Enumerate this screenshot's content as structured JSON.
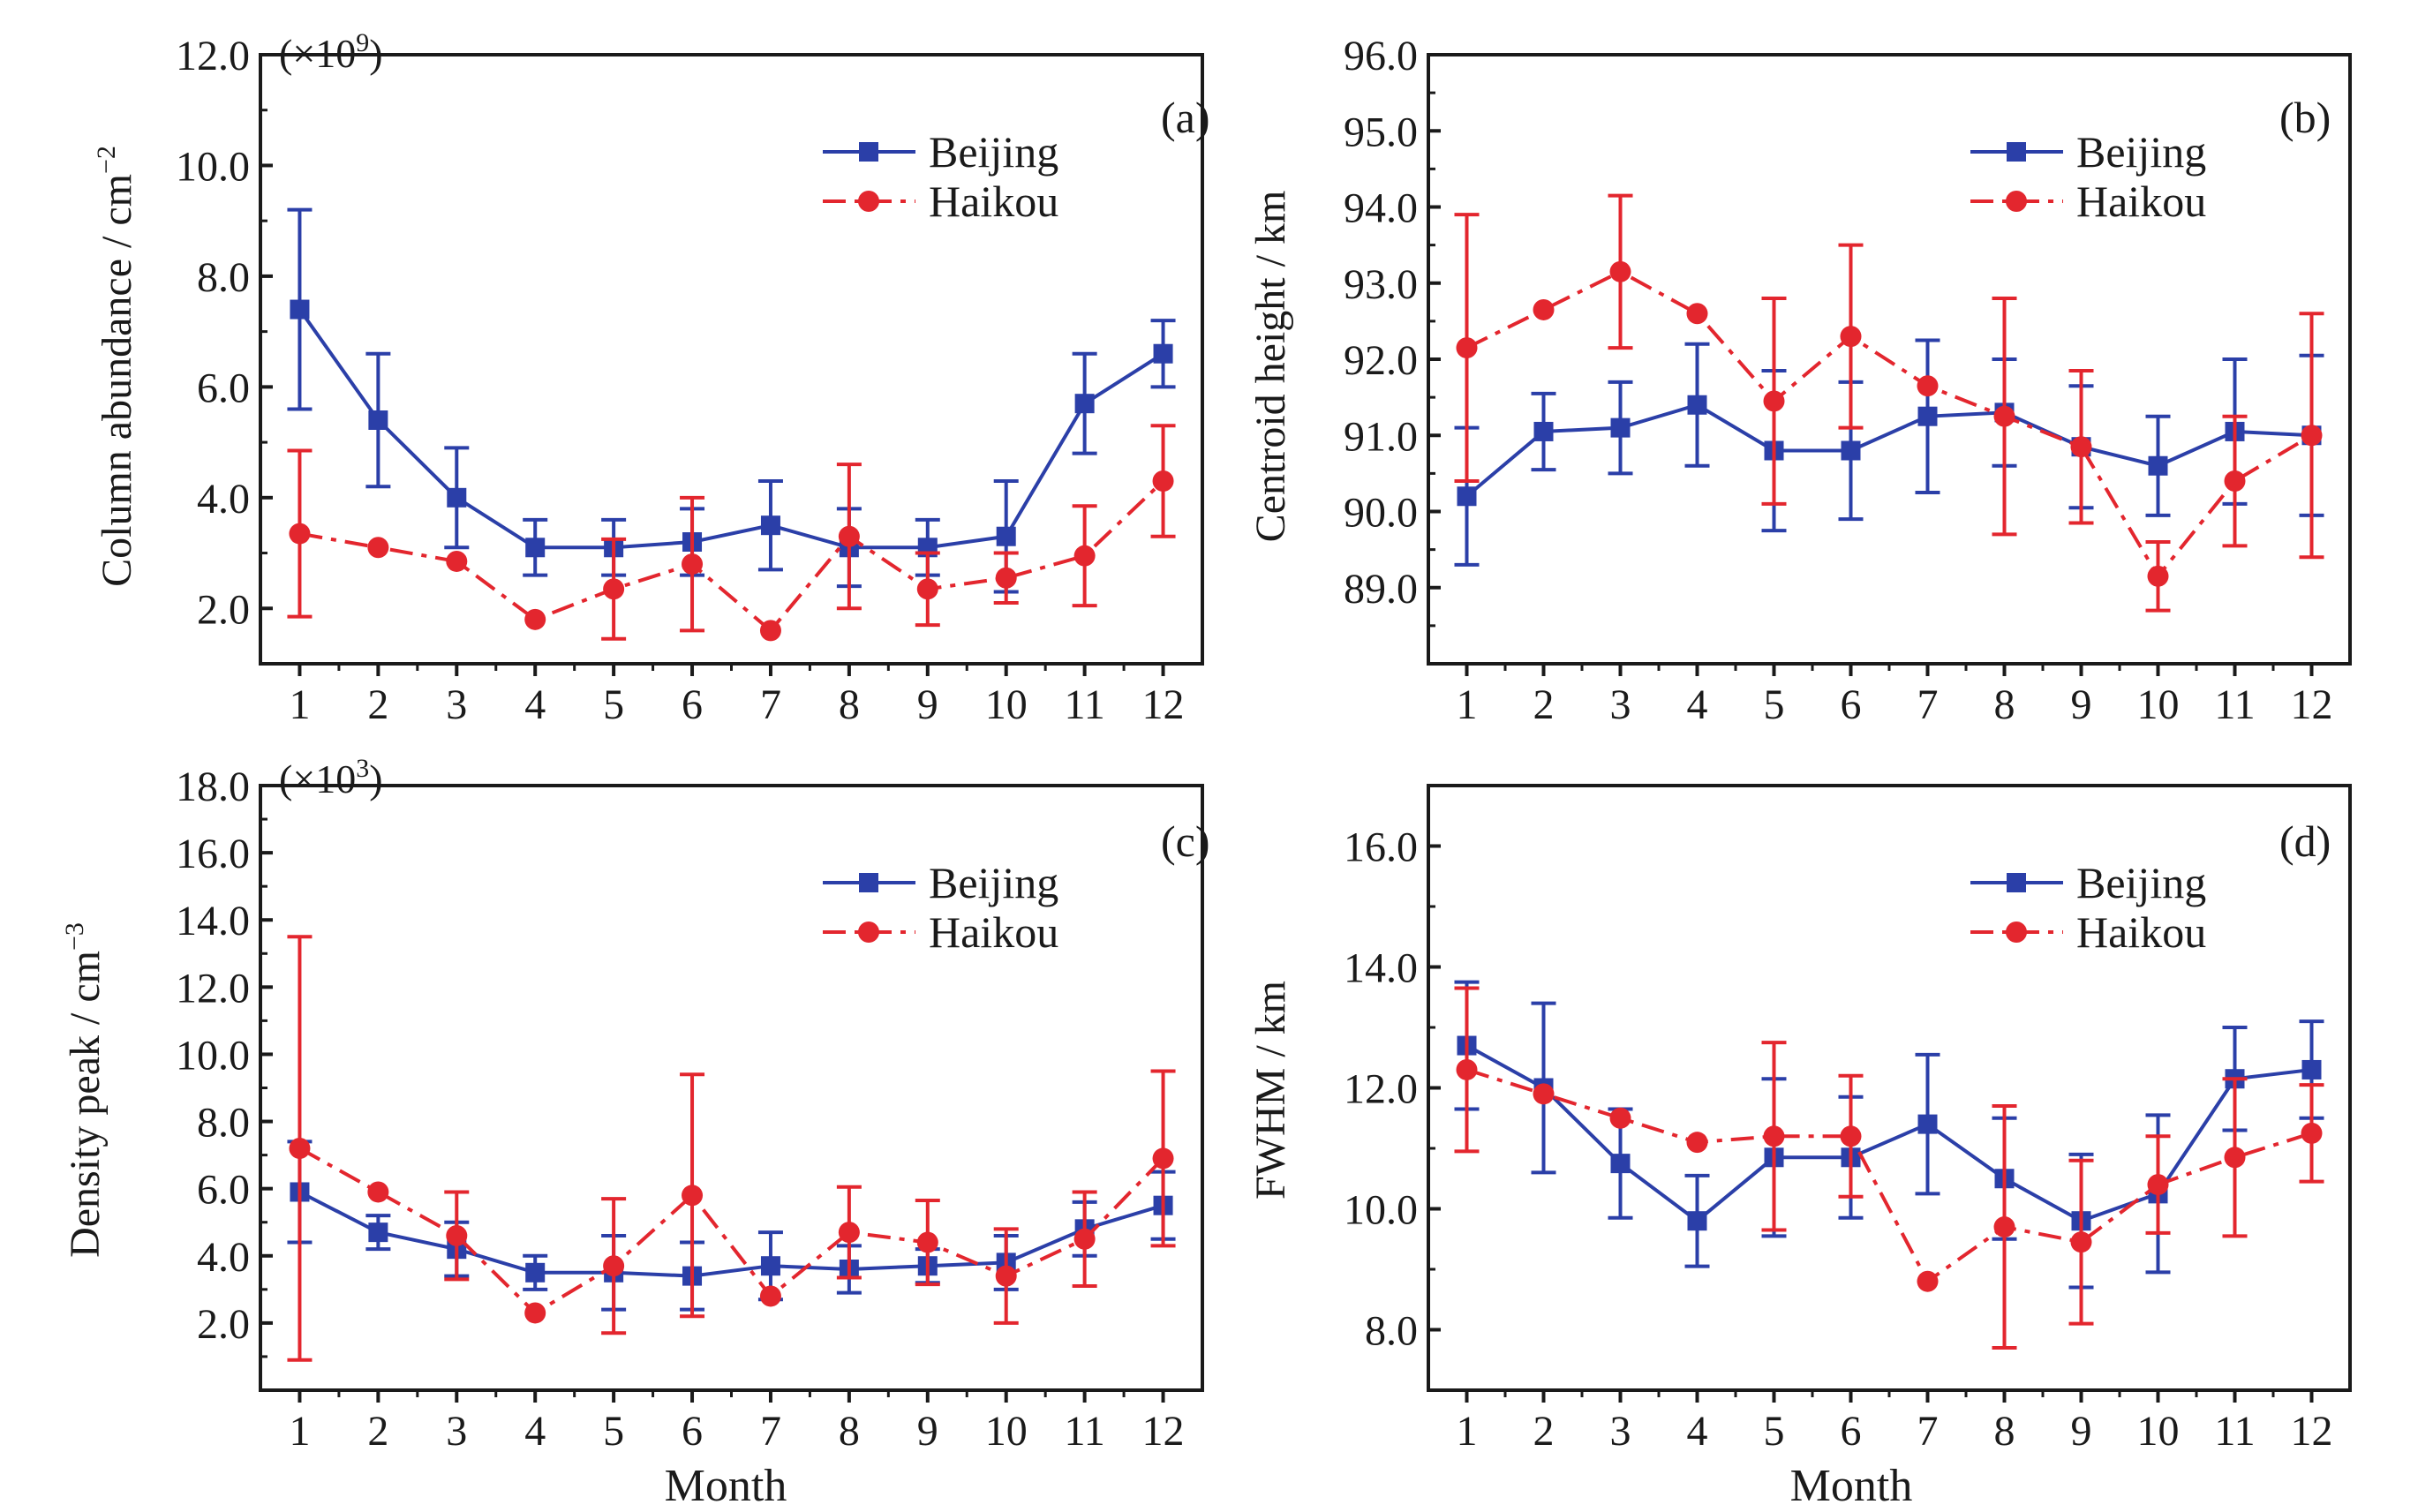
{
  "colors": {
    "beijing": "#2b3fa8",
    "haikou": "#e3262e",
    "axis": "#1a1a1a"
  },
  "shared_xlabel": "Month",
  "chart_data": [
    {
      "panel": "(a)",
      "type": "line",
      "ylabel": "Column abundance / cm",
      "ylabel_sup": "−2",
      "multiplier": "(×10",
      "multiplier_sup": "9",
      "multiplier_close": ")",
      "xlim": [
        0.5,
        12.5
      ],
      "ylim": [
        1.0,
        12.0
      ],
      "yticks": [
        2.0,
        4.0,
        6.0,
        8.0,
        10.0,
        12.0
      ],
      "categories": [
        "1",
        "2",
        "3",
        "4",
        "5",
        "6",
        "7",
        "8",
        "9",
        "10",
        "11",
        "12"
      ],
      "legend": "top-right",
      "series": [
        {
          "name": "Beijing",
          "marker": "square",
          "dash": "solid",
          "values": [
            7.4,
            5.4,
            4.0,
            3.1,
            3.1,
            3.2,
            3.5,
            3.1,
            3.1,
            3.3,
            5.7,
            6.6
          ],
          "err": [
            1.8,
            1.2,
            0.9,
            0.5,
            0.5,
            0.6,
            0.8,
            0.7,
            0.5,
            1.0,
            0.9,
            0.6
          ]
        },
        {
          "name": "Haikou",
          "marker": "circle",
          "dash": "dashdot",
          "values": [
            3.35,
            3.1,
            2.85,
            1.8,
            2.35,
            2.8,
            1.6,
            3.3,
            2.35,
            2.55,
            2.95,
            4.3
          ],
          "err": [
            1.5,
            0.0,
            0.0,
            0.0,
            0.9,
            1.2,
            0.0,
            1.3,
            0.65,
            0.45,
            0.9,
            1.0
          ]
        }
      ]
    },
    {
      "panel": "(b)",
      "type": "line",
      "ylabel": "Centroid height / km",
      "xlim": [
        0.5,
        12.5
      ],
      "ylim": [
        88.0,
        96.0
      ],
      "yticks": [
        89.0,
        90.0,
        91.0,
        92.0,
        93.0,
        94.0,
        95.0,
        96.0
      ],
      "categories": [
        "1",
        "2",
        "3",
        "4",
        "5",
        "6",
        "7",
        "8",
        "9",
        "10",
        "11",
        "12"
      ],
      "legend": "top-right",
      "series": [
        {
          "name": "Beijing",
          "marker": "square",
          "dash": "solid",
          "values": [
            90.2,
            91.05,
            91.1,
            91.4,
            90.8,
            90.8,
            91.25,
            91.3,
            90.85,
            90.6,
            91.05,
            91.0
          ],
          "err": [
            0.9,
            0.5,
            0.6,
            0.8,
            1.05,
            0.9,
            1.0,
            0.7,
            0.8,
            0.65,
            0.95,
            1.05
          ]
        },
        {
          "name": "Haikou",
          "marker": "circle",
          "dash": "dashdot",
          "values": [
            92.15,
            92.65,
            93.15,
            92.6,
            91.45,
            92.3,
            91.65,
            91.25,
            90.85,
            89.15,
            90.4,
            91.0
          ],
          "err": [
            1.75,
            0.0,
            1.0,
            0.0,
            1.35,
            1.2,
            0.0,
            1.55,
            1.0,
            0.45,
            0.85,
            1.6
          ]
        }
      ]
    },
    {
      "panel": "(c)",
      "type": "line",
      "ylabel": "Density peak / cm",
      "ylabel_sup": "−3",
      "multiplier": "(×10",
      "multiplier_sup": "3",
      "multiplier_close": ")",
      "xlim": [
        0.5,
        12.5
      ],
      "ylim": [
        0.0,
        18.0
      ],
      "yticks": [
        2.0,
        4.0,
        6.0,
        8.0,
        10.0,
        12.0,
        14.0,
        16.0,
        18.0
      ],
      "categories": [
        "1",
        "2",
        "3",
        "4",
        "5",
        "6",
        "7",
        "8",
        "9",
        "10",
        "11",
        "12"
      ],
      "legend": "top-right",
      "series": [
        {
          "name": "Beijing",
          "marker": "square",
          "dash": "solid",
          "values": [
            5.9,
            4.7,
            4.2,
            3.5,
            3.5,
            3.4,
            3.7,
            3.6,
            3.7,
            3.8,
            4.8,
            5.5
          ],
          "err": [
            1.5,
            0.5,
            0.8,
            0.5,
            1.1,
            1.0,
            1.0,
            0.7,
            0.5,
            0.8,
            0.8,
            1.0
          ]
        },
        {
          "name": "Haikou",
          "marker": "circle",
          "dash": "dashdot",
          "values": [
            7.2,
            5.9,
            4.6,
            2.3,
            3.7,
            5.8,
            2.8,
            4.7,
            4.4,
            3.4,
            4.5,
            6.9
          ],
          "err": [
            6.3,
            0.0,
            1.3,
            0.0,
            2.0,
            3.6,
            0.0,
            1.35,
            1.25,
            1.4,
            1.4,
            2.6
          ]
        }
      ]
    },
    {
      "panel": "(d)",
      "type": "line",
      "ylabel": "FWHM / km",
      "xlim": [
        0.5,
        12.5
      ],
      "ylim": [
        7.0,
        17.0
      ],
      "yticks": [
        8.0,
        10.0,
        12.0,
        14.0,
        16.0
      ],
      "categories": [
        "1",
        "2",
        "3",
        "4",
        "5",
        "6",
        "7",
        "8",
        "9",
        "10",
        "11",
        "12"
      ],
      "legend": "top-right",
      "series": [
        {
          "name": "Beijing",
          "marker": "square",
          "dash": "solid",
          "values": [
            12.7,
            12.0,
            10.75,
            9.8,
            10.85,
            10.85,
            11.4,
            10.5,
            9.8,
            10.25,
            12.15,
            12.3
          ],
          "err": [
            1.05,
            1.4,
            0.9,
            0.75,
            1.3,
            1.0,
            1.15,
            1.0,
            1.1,
            1.3,
            0.85,
            0.8
          ]
        },
        {
          "name": "Haikou",
          "marker": "circle",
          "dash": "dashdot",
          "values": [
            12.3,
            11.9,
            11.5,
            11.1,
            11.2,
            11.2,
            8.8,
            9.7,
            9.45,
            10.4,
            10.85,
            11.25
          ],
          "err": [
            1.35,
            0.0,
            0.0,
            0.0,
            1.55,
            1.0,
            0.0,
            2.0,
            1.35,
            0.8,
            1.3,
            0.8
          ]
        }
      ]
    }
  ]
}
